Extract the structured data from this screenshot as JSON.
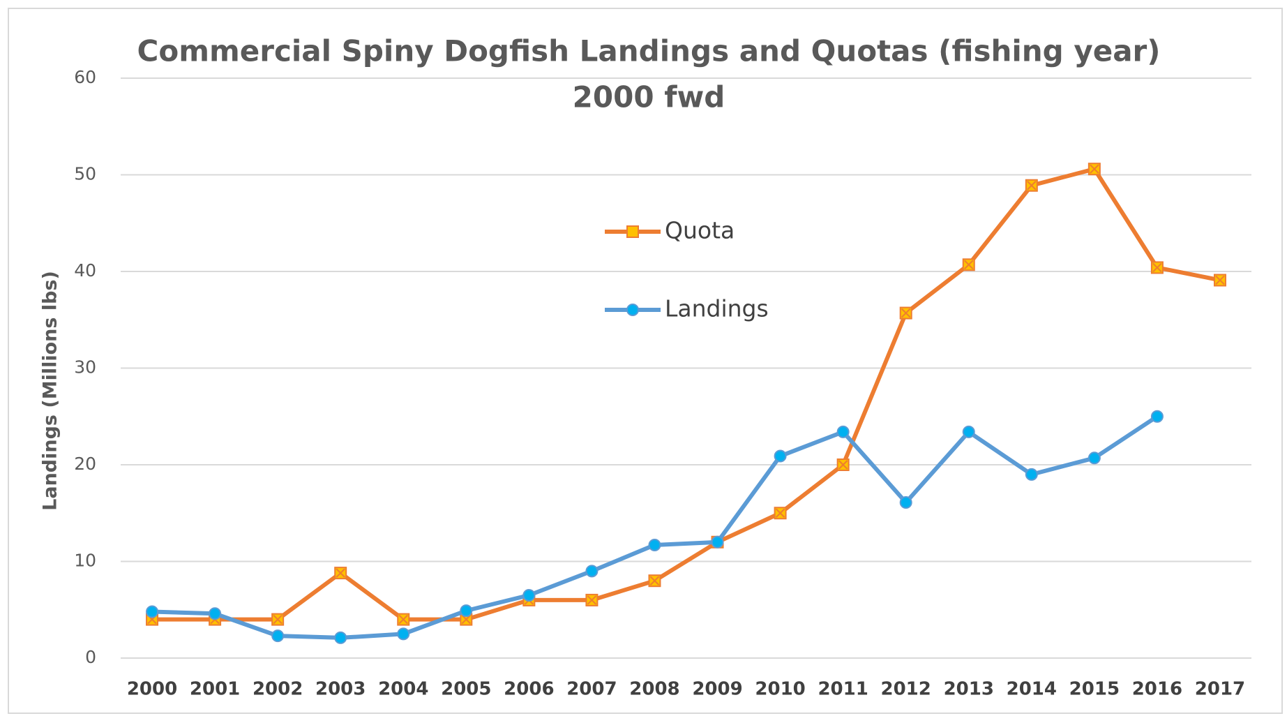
{
  "chart_data": {
    "type": "line",
    "title": "Commercial Spiny Dogfish Landings and Quotas (fishing year)",
    "subtitle": "2000 fwd",
    "y_label": "Landings (Millions lbs)",
    "categories": [
      "2000",
      "2001",
      "2002",
      "2003",
      "2004",
      "2005",
      "2006",
      "2007",
      "2008",
      "2009",
      "2010",
      "2011",
      "2012",
      "2013",
      "2014",
      "2015",
      "2016",
      "2017"
    ],
    "series": [
      {
        "name": "Quota",
        "color": "#ed7d31",
        "marker": "square",
        "values": [
          4,
          4,
          4,
          8.8,
          4,
          4,
          6,
          6,
          8,
          12,
          15,
          20,
          35.7,
          40.7,
          48.9,
          50.6,
          40.4,
          39.1
        ]
      },
      {
        "name": "Landings",
        "color": "#5b9bd5",
        "marker": "circle",
        "values": [
          4.8,
          4.6,
          2.3,
          2.1,
          2.5,
          4.9,
          6.5,
          9,
          11.7,
          12,
          20.9,
          23.4,
          16.1,
          23.4,
          19,
          20.7,
          25,
          null
        ]
      }
    ],
    "ylim": [
      0,
      60
    ],
    "yticks": [
      0,
      10,
      20,
      30,
      40,
      50,
      60
    ],
    "grid": true
  }
}
